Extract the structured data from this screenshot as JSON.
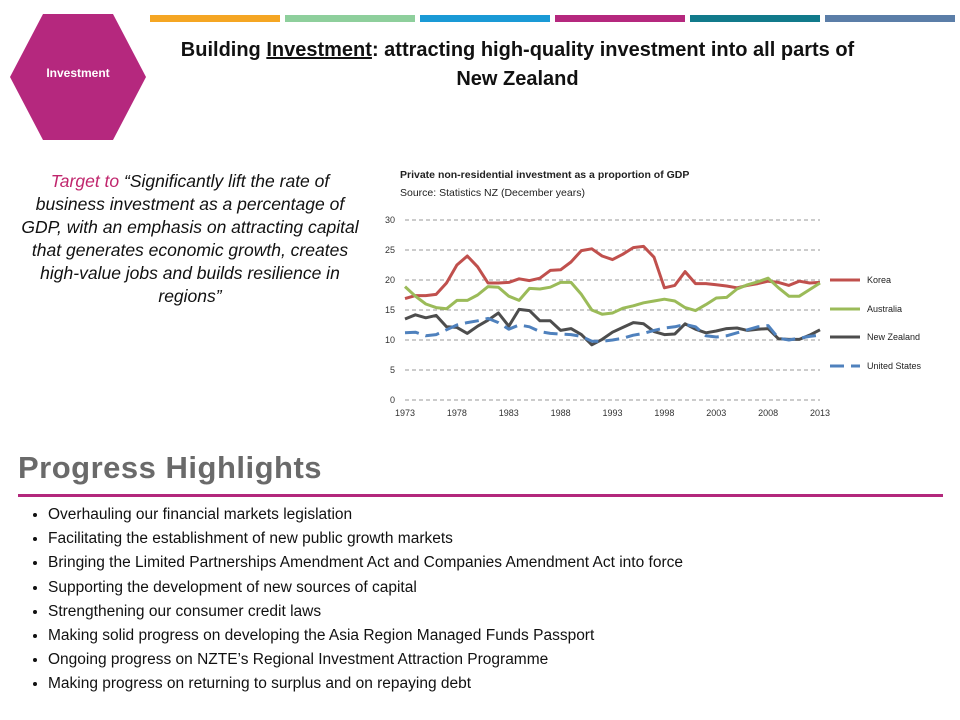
{
  "header": {
    "badge_label": "Investment",
    "title_pre": "Building ",
    "title_emphasis": "Investment",
    "title_post": ": attracting high-quality investment into all parts of New Zealand"
  },
  "colors": {
    "badge": "#b5287e",
    "topbars": [
      "#f5a623",
      "#8ecf9c",
      "#1a9ad6",
      "#b5287e",
      "#117a8b",
      "#5b7ea8"
    ],
    "accent_text": "#c0266d",
    "rule": "#b3287c"
  },
  "target": {
    "lead": "Target to",
    "quote": " “Significantly lift the rate of business investment as a percentage of GDP, with an emphasis on attracting capital that generates economic growth, creates high-value jobs and builds resilience in regions”"
  },
  "chart_data": {
    "type": "line",
    "title": "Private non-residential investment as a proportion of GDP",
    "subtitle": "Source: Statistics NZ (December years)",
    "xlabel": "",
    "ylabel": "",
    "xlim": [
      1973,
      2013
    ],
    "ylim": [
      0,
      30
    ],
    "yticks": [
      0,
      5,
      10,
      15,
      20,
      25,
      30
    ],
    "xticks": [
      "1973",
      "1978",
      "1983",
      "1988",
      "1993",
      "1998",
      "2003",
      "2008",
      "2013"
    ],
    "grid": true,
    "legend_position": "right",
    "x": [
      1973,
      1974,
      1975,
      1976,
      1977,
      1978,
      1979,
      1980,
      1981,
      1982,
      1983,
      1984,
      1985,
      1986,
      1987,
      1988,
      1989,
      1990,
      1991,
      1992,
      1993,
      1994,
      1995,
      1996,
      1997,
      1998,
      1999,
      2000,
      2001,
      2002,
      2003,
      2004,
      2005,
      2006,
      2007,
      2008,
      2009,
      2010,
      2011,
      2012,
      2013
    ],
    "series": [
      {
        "name": "Korea",
        "color": "#c0504d",
        "dash": "solid",
        "values": [
          16.9,
          17.4,
          17.4,
          17.6,
          19.5,
          22.5,
          24.0,
          22.2,
          19.5,
          19.5,
          19.6,
          20.2,
          19.9,
          20.3,
          21.6,
          21.7,
          23.0,
          24.9,
          25.2,
          24.0,
          23.4,
          24.3,
          25.4,
          25.6,
          23.8,
          18.7,
          19.1,
          21.4,
          19.4,
          19.4,
          19.2,
          19.0,
          18.7,
          19.1,
          19.4,
          19.8,
          19.6,
          19.1,
          19.8,
          19.5,
          19.6
        ]
      },
      {
        "name": "Australia",
        "color": "#9bbb59",
        "dash": "solid",
        "values": [
          18.9,
          17.3,
          16.0,
          15.4,
          15.2,
          16.6,
          16.6,
          17.5,
          18.9,
          18.8,
          17.3,
          16.6,
          18.6,
          18.5,
          18.8,
          19.6,
          19.6,
          17.6,
          15.0,
          14.3,
          14.5,
          15.3,
          15.7,
          16.2,
          16.5,
          16.8,
          16.5,
          15.4,
          14.9,
          15.9,
          17.0,
          17.1,
          18.5,
          19.2,
          19.7,
          20.3,
          18.7,
          17.3,
          17.3,
          18.4,
          19.5
        ]
      },
      {
        "name": "New Zealand",
        "color": "#4d4d4d",
        "dash": "solid",
        "values": [
          13.5,
          14.2,
          13.7,
          14.1,
          12.2,
          12.1,
          11.1,
          12.3,
          13.3,
          14.5,
          12.3,
          15.1,
          14.9,
          13.2,
          13.2,
          11.6,
          11.9,
          10.9,
          9.2,
          10.1,
          11.3,
          12.1,
          12.9,
          12.7,
          11.4,
          10.9,
          11.0,
          12.7,
          11.8,
          11.2,
          11.5,
          11.9,
          12.0,
          11.6,
          11.8,
          11.9,
          10.2,
          10.1,
          10.1,
          10.8,
          11.7
        ]
      },
      {
        "name": "United States",
        "color": "#4f81bd",
        "dash": "dashed",
        "values": [
          11.2,
          11.3,
          10.7,
          10.9,
          11.7,
          12.5,
          12.9,
          13.2,
          13.6,
          12.9,
          11.8,
          12.5,
          12.2,
          11.4,
          11.1,
          11.0,
          10.9,
          10.6,
          9.8,
          9.8,
          10.0,
          10.3,
          10.8,
          11.1,
          11.6,
          12.0,
          12.2,
          12.6,
          12.2,
          10.7,
          10.5,
          10.7,
          11.2,
          11.7,
          12.2,
          12.4,
          10.3,
          10.0,
          10.3,
          10.6,
          10.8
        ]
      }
    ]
  },
  "progress": {
    "heading": "Progress Highlights",
    "items": [
      "Overhauling our financial markets legislation",
      "Facilitating the establishment of new public growth markets",
      "Bringing the Limited Partnerships Amendment Act and Companies Amendment Act into force",
      "Supporting the development of new sources of capital",
      "Strengthening our consumer credit laws",
      "Making solid progress on developing the Asia Region Managed Funds Passport",
      "Ongoing progress on NZTE’s Regional Investment Attraction Programme",
      "Making progress on returning to surplus and on repaying debt"
    ]
  }
}
